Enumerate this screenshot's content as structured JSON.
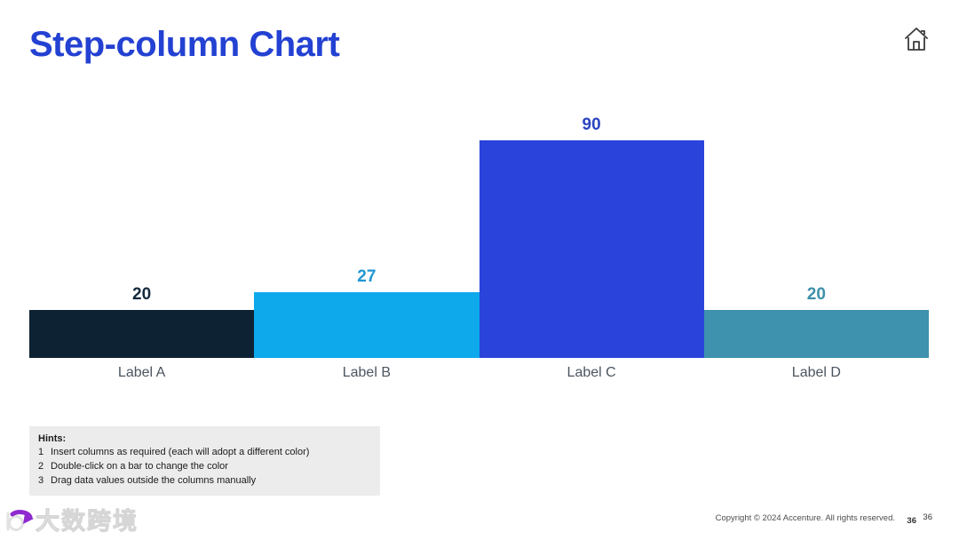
{
  "page": {
    "title": "Step-column Chart",
    "title_color": "#2341D2"
  },
  "chart_data": {
    "type": "bar",
    "title": "Step-column Chart",
    "categories": [
      "Label A",
      "Label B",
      "Label C",
      "Label D"
    ],
    "values": [
      20,
      27,
      90,
      20
    ],
    "bar_colors": [
      "#0D2333",
      "#0DA9EB",
      "#2A44DB",
      "#3E92AD"
    ],
    "value_label_colors": [
      "#152A3E",
      "#2196D3",
      "#2C44C0",
      "#3E8FA9"
    ],
    "category_label_color": "#4C5560",
    "ylim": [
      0,
      90
    ],
    "gridlines": false,
    "axes_visible": false,
    "value_labels_position": "above-bar",
    "bars_touching": true
  },
  "icons": {
    "home": "home-icon",
    "logo_swirl": "logo-swirl-icon"
  },
  "hints": {
    "heading": "Hints:",
    "items": [
      {
        "num": "1",
        "text": "Insert columns as required (each will adopt a different color)"
      },
      {
        "num": "2",
        "text": "Double-click on a bar to change the color"
      },
      {
        "num": "3",
        "text": "Drag data values outside the columns manually"
      }
    ]
  },
  "footer": {
    "copyright": "Copyright © 2024 Accenture. All rights reserved.",
    "page_number_primary": "36",
    "page_number_secondary": "36"
  },
  "watermark": {
    "logo_text": "大数跨境",
    "logo_accent_color": "#8E2ACF"
  }
}
